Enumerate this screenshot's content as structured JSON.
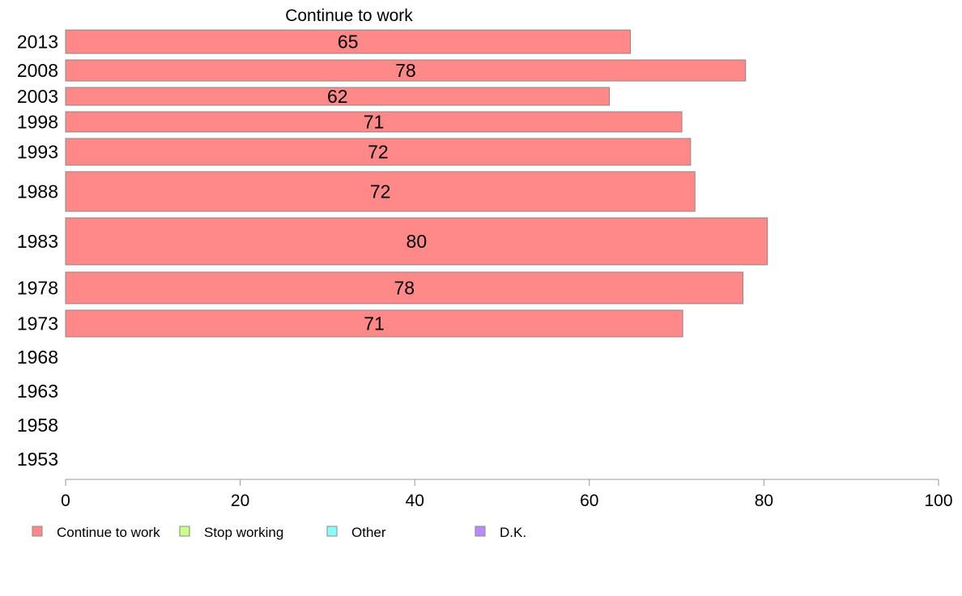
{
  "chart_data": {
    "type": "bar",
    "orientation": "horizontal",
    "title": "Continue to work",
    "xlim": [
      0,
      100
    ],
    "x_ticks": [
      "0",
      "20",
      "40",
      "60",
      "80",
      "100"
    ],
    "categories": [
      "2013",
      "2008",
      "2003",
      "1998",
      "1993",
      "1988",
      "1983",
      "1978",
      "1973",
      "1968",
      "1963",
      "1958",
      "1953"
    ],
    "series": [
      {
        "name": "Continue to work",
        "color": "#ff8888",
        "values": [
          64.7,
          77.9,
          62.3,
          70.6,
          71.6,
          72.1,
          80.4,
          77.6,
          70.7,
          null,
          null,
          null,
          null
        ],
        "labels": [
          "65",
          "78",
          "62",
          "71",
          "72",
          "72",
          "80",
          "78",
          "71",
          "",
          "",
          "",
          ""
        ]
      }
    ],
    "legend": {
      "placement": "bottom-left",
      "items": [
        {
          "label": "Continue to work",
          "color": "#ff8888"
        },
        {
          "label": "Stop working",
          "color": "#ccff88"
        },
        {
          "label": "Other",
          "color": "#88ffff"
        },
        {
          "label": "D.K.",
          "color": "#bb88ff"
        }
      ]
    },
    "grid": false
  }
}
